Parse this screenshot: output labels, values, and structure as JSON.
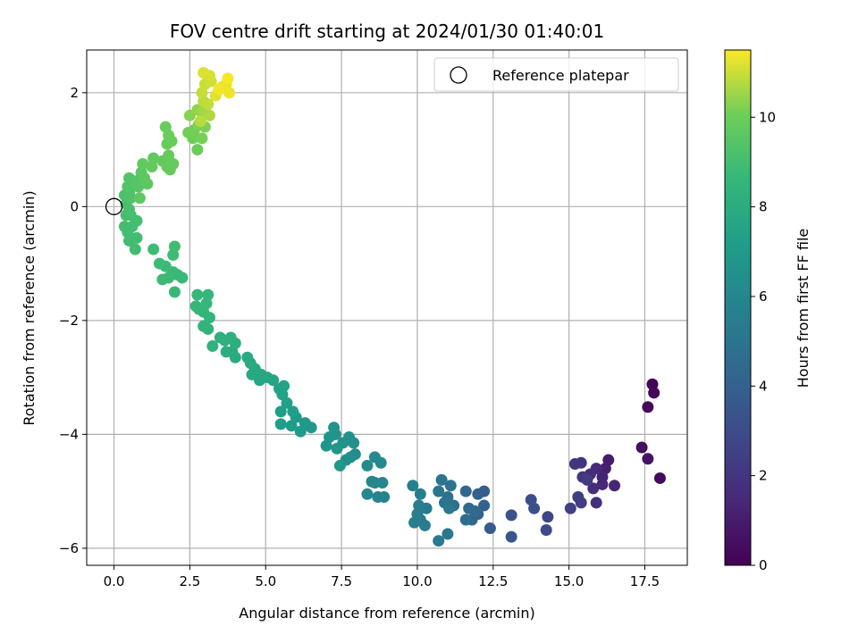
{
  "chart_data": {
    "type": "scatter",
    "title": "FOV centre drift starting at 2024/01/30 01:40:01",
    "xlabel": "Angular distance from reference (arcmin)",
    "ylabel": "Rotation from reference (arcmin)",
    "colorbar_label": "Hours from first FF file",
    "xlim": [
      -0.9,
      18.9
    ],
    "ylim": [
      -6.3,
      2.75
    ],
    "clim": [
      0,
      11.5
    ],
    "x_ticks": [
      0.0,
      2.5,
      5.0,
      7.5,
      10.0,
      12.5,
      15.0,
      17.5
    ],
    "x_tick_labels": [
      "0.0",
      "2.5",
      "5.0",
      "7.5",
      "10.0",
      "12.5",
      "15.0",
      "17.5"
    ],
    "y_ticks": [
      2,
      0,
      -2,
      -4,
      -6
    ],
    "y_tick_labels": [
      "2",
      "0",
      "−2",
      "−4",
      "−6"
    ],
    "colorbar_ticks": [
      0,
      2,
      4,
      6,
      8,
      10
    ],
    "colorbar_tick_labels": [
      "0",
      "2",
      "4",
      "6",
      "8",
      "10"
    ],
    "grid": true,
    "colormap": "viridis",
    "legend": {
      "position": "top-right",
      "label": "Reference platepar",
      "marker": "open-circle"
    },
    "reference_point": {
      "x": 0.0,
      "y": 0.0
    },
    "points": [
      [
        17.75,
        -3.12,
        0.1
      ],
      [
        17.8,
        -3.27,
        0.2
      ],
      [
        17.6,
        -3.52,
        0.3
      ],
      [
        18.0,
        -4.77,
        0.4
      ],
      [
        17.4,
        -4.23,
        0.5
      ],
      [
        17.6,
        -4.43,
        0.7
      ],
      [
        16.3,
        -4.45,
        1.0
      ],
      [
        16.2,
        -4.6,
        1.1
      ],
      [
        16.1,
        -4.75,
        1.2
      ],
      [
        16.5,
        -4.9,
        1.3
      ],
      [
        16.1,
        -4.88,
        1.4
      ],
      [
        15.9,
        -4.6,
        1.5
      ],
      [
        15.7,
        -4.7,
        1.6
      ],
      [
        15.8,
        -4.95,
        1.7
      ],
      [
        15.9,
        -5.2,
        1.8
      ],
      [
        15.4,
        -4.5,
        1.9
      ],
      [
        15.2,
        -4.52,
        2.0
      ],
      [
        15.45,
        -4.75,
        2.1
      ],
      [
        15.6,
        -4.8,
        2.2
      ],
      [
        15.3,
        -5.1,
        2.3
      ],
      [
        15.4,
        -5.2,
        2.4
      ],
      [
        15.05,
        -5.3,
        2.5
      ],
      [
        14.3,
        -5.45,
        2.8
      ],
      [
        14.25,
        -5.68,
        2.9
      ],
      [
        13.75,
        -5.15,
        3.1
      ],
      [
        13.85,
        -5.3,
        3.2
      ],
      [
        13.1,
        -5.42,
        3.4
      ],
      [
        13.1,
        -5.8,
        3.5
      ],
      [
        12.4,
        -5.65,
        3.7
      ],
      [
        12.2,
        -5.0,
        3.8
      ],
      [
        12.0,
        -5.05,
        3.9
      ],
      [
        12.2,
        -5.25,
        4.0
      ],
      [
        12.0,
        -5.4,
        4.1
      ],
      [
        11.8,
        -5.5,
        4.2
      ],
      [
        11.6,
        -5.0,
        4.3
      ],
      [
        11.7,
        -5.3,
        4.4
      ],
      [
        11.9,
        -5.35,
        4.5
      ],
      [
        11.6,
        -5.5,
        4.6
      ],
      [
        11.2,
        -5.25,
        4.7
      ],
      [
        11.0,
        -5.1,
        4.8
      ],
      [
        11.1,
        -4.9,
        4.9
      ],
      [
        10.8,
        -4.8,
        5.0
      ],
      [
        10.7,
        -5.0,
        5.05
      ],
      [
        10.9,
        -5.2,
        5.1
      ],
      [
        11.05,
        -5.3,
        5.15
      ],
      [
        11.0,
        -5.75,
        5.2
      ],
      [
        10.7,
        -5.87,
        5.25
      ],
      [
        10.3,
        -5.3,
        5.3
      ],
      [
        10.25,
        -5.6,
        5.35
      ],
      [
        10.1,
        -5.5,
        5.4
      ],
      [
        10.05,
        -5.25,
        5.45
      ],
      [
        10.0,
        -5.4,
        5.5
      ],
      [
        9.9,
        -5.55,
        5.55
      ],
      [
        10.1,
        -5.05,
        5.6
      ],
      [
        9.85,
        -4.9,
        5.65
      ],
      [
        8.9,
        -5.1,
        5.8
      ],
      [
        8.7,
        -5.1,
        5.85
      ],
      [
        8.6,
        -4.85,
        5.9
      ],
      [
        8.85,
        -4.85,
        5.95
      ],
      [
        8.5,
        -4.83,
        6.0
      ],
      [
        8.35,
        -5.05,
        6.05
      ],
      [
        8.8,
        -4.5,
        6.1
      ],
      [
        8.6,
        -4.4,
        6.15
      ],
      [
        8.35,
        -4.55,
        6.2
      ],
      [
        7.95,
        -4.35,
        6.3
      ],
      [
        7.8,
        -4.4,
        6.35
      ],
      [
        7.65,
        -4.45,
        6.4
      ],
      [
        7.9,
        -4.15,
        6.45
      ],
      [
        7.75,
        -4.05,
        6.5
      ],
      [
        7.55,
        -4.15,
        6.55
      ],
      [
        7.3,
        -4.0,
        6.6
      ],
      [
        7.25,
        -3.88,
        6.65
      ],
      [
        7.1,
        -4.05,
        6.7
      ],
      [
        7.0,
        -4.2,
        6.75
      ],
      [
        7.35,
        -4.25,
        6.8
      ],
      [
        7.45,
        -4.55,
        6.85
      ],
      [
        6.5,
        -3.88,
        6.95
      ],
      [
        6.3,
        -3.8,
        7.0
      ],
      [
        6.15,
        -3.95,
        7.05
      ],
      [
        6.0,
        -3.7,
        7.1
      ],
      [
        5.85,
        -3.85,
        7.15
      ],
      [
        5.5,
        -3.82,
        7.2
      ],
      [
        5.5,
        -3.6,
        7.25
      ],
      [
        5.9,
        -3.6,
        7.3
      ],
      [
        5.7,
        -3.45,
        7.35
      ],
      [
        5.55,
        -3.3,
        7.4
      ],
      [
        5.45,
        -3.2,
        7.45
      ],
      [
        5.6,
        -3.15,
        7.5
      ],
      [
        5.25,
        -3.05,
        7.55
      ],
      [
        5.05,
        -3.0,
        7.6
      ],
      [
        4.8,
        -3.05,
        7.65
      ],
      [
        4.85,
        -2.95,
        7.7
      ],
      [
        4.65,
        -2.85,
        7.75
      ],
      [
        4.55,
        -2.95,
        7.8
      ],
      [
        4.5,
        -2.75,
        7.85
      ],
      [
        4.4,
        -2.65,
        7.9
      ],
      [
        4.0,
        -2.65,
        7.95
      ],
      [
        3.9,
        -2.55,
        8.0
      ],
      [
        3.7,
        -2.55,
        8.05
      ],
      [
        4.0,
        -2.4,
        8.1
      ],
      [
        3.85,
        -2.3,
        8.15
      ],
      [
        3.65,
        -2.35,
        8.2
      ],
      [
        3.5,
        -2.3,
        8.25
      ],
      [
        3.25,
        -2.45,
        8.3
      ],
      [
        3.1,
        -2.15,
        8.35
      ],
      [
        2.95,
        -2.1,
        8.4
      ],
      [
        3.15,
        -1.95,
        8.45
      ],
      [
        2.95,
        -1.85,
        8.5
      ],
      [
        2.8,
        -1.8,
        8.55
      ],
      [
        2.7,
        -1.75,
        8.6
      ],
      [
        3.05,
        -1.7,
        8.62
      ],
      [
        3.1,
        -1.55,
        8.64
      ],
      [
        2.75,
        -1.55,
        8.66
      ],
      [
        2.0,
        -1.5,
        8.7
      ],
      [
        2.25,
        -1.25,
        8.72
      ],
      [
        2.1,
        -1.2,
        8.74
      ],
      [
        1.95,
        -1.15,
        8.76
      ],
      [
        1.8,
        -1.25,
        8.78
      ],
      [
        1.6,
        -1.28,
        8.8
      ],
      [
        1.7,
        -1.05,
        8.82
      ],
      [
        1.5,
        -1.0,
        8.84
      ],
      [
        1.3,
        -0.75,
        8.86
      ],
      [
        1.95,
        -0.85,
        8.88
      ],
      [
        2.0,
        -0.7,
        8.9
      ],
      [
        0.75,
        -0.55,
        8.92
      ],
      [
        0.7,
        -0.75,
        8.94
      ],
      [
        0.5,
        -0.6,
        8.96
      ],
      [
        0.45,
        -0.45,
        8.98
      ],
      [
        0.35,
        -0.35,
        9.0
      ],
      [
        0.6,
        -0.35,
        9.02
      ],
      [
        0.75,
        -0.25,
        9.04
      ],
      [
        0.55,
        -0.15,
        9.06
      ],
      [
        0.4,
        -0.15,
        9.08
      ],
      [
        0.5,
        -0.05,
        9.1
      ],
      [
        0.4,
        0.05,
        9.15
      ],
      [
        0.35,
        0.2,
        9.2
      ],
      [
        0.5,
        0.25,
        9.25
      ],
      [
        0.55,
        0.15,
        9.3
      ],
      [
        0.45,
        0.35,
        9.35
      ],
      [
        0.5,
        0.5,
        9.4
      ],
      [
        0.75,
        0.45,
        9.45
      ],
      [
        0.8,
        0.35,
        9.5
      ],
      [
        0.9,
        0.6,
        9.55
      ],
      [
        1.0,
        0.5,
        9.6
      ],
      [
        1.1,
        0.4,
        9.65
      ],
      [
        0.85,
        0.15,
        9.7
      ],
      [
        0.95,
        0.75,
        9.72
      ],
      [
        1.3,
        0.85,
        9.74
      ],
      [
        1.25,
        0.7,
        9.76
      ],
      [
        1.6,
        0.8,
        9.78
      ],
      [
        1.75,
        0.7,
        9.8
      ],
      [
        1.85,
        0.65,
        9.82
      ],
      [
        1.95,
        0.75,
        9.84
      ],
      [
        1.8,
        0.9,
        9.86
      ],
      [
        1.75,
        1.1,
        9.88
      ],
      [
        1.9,
        1.15,
        9.9
      ],
      [
        1.7,
        1.4,
        9.92
      ],
      [
        1.8,
        1.25,
        9.94
      ],
      [
        2.75,
        1.0,
        9.96
      ],
      [
        2.6,
        1.2,
        10.0
      ],
      [
        2.45,
        1.3,
        10.05
      ],
      [
        2.65,
        1.35,
        10.1
      ],
      [
        2.9,
        1.2,
        10.15
      ],
      [
        3.0,
        1.4,
        10.2
      ],
      [
        2.8,
        1.45,
        10.25
      ],
      [
        2.5,
        1.6,
        10.3
      ],
      [
        2.75,
        1.7,
        10.4
      ],
      [
        2.9,
        1.65,
        10.5
      ],
      [
        3.0,
        1.7,
        10.6
      ],
      [
        3.15,
        1.6,
        10.7
      ],
      [
        2.85,
        1.5,
        10.8
      ],
      [
        2.95,
        1.85,
        10.85
      ],
      [
        3.1,
        1.8,
        10.9
      ],
      [
        2.9,
        2.0,
        10.95
      ],
      [
        3.0,
        2.15,
        11.0
      ],
      [
        3.2,
        2.2,
        11.05
      ],
      [
        3.15,
        2.3,
        11.1
      ],
      [
        2.95,
        2.35,
        11.15
      ],
      [
        3.35,
        1.95,
        11.2
      ],
      [
        3.55,
        2.1,
        11.25
      ],
      [
        3.7,
        2.15,
        11.3
      ],
      [
        3.8,
        2.0,
        11.35
      ],
      [
        3.45,
        2.05,
        11.4
      ],
      [
        3.75,
        2.25,
        11.45
      ]
    ]
  }
}
